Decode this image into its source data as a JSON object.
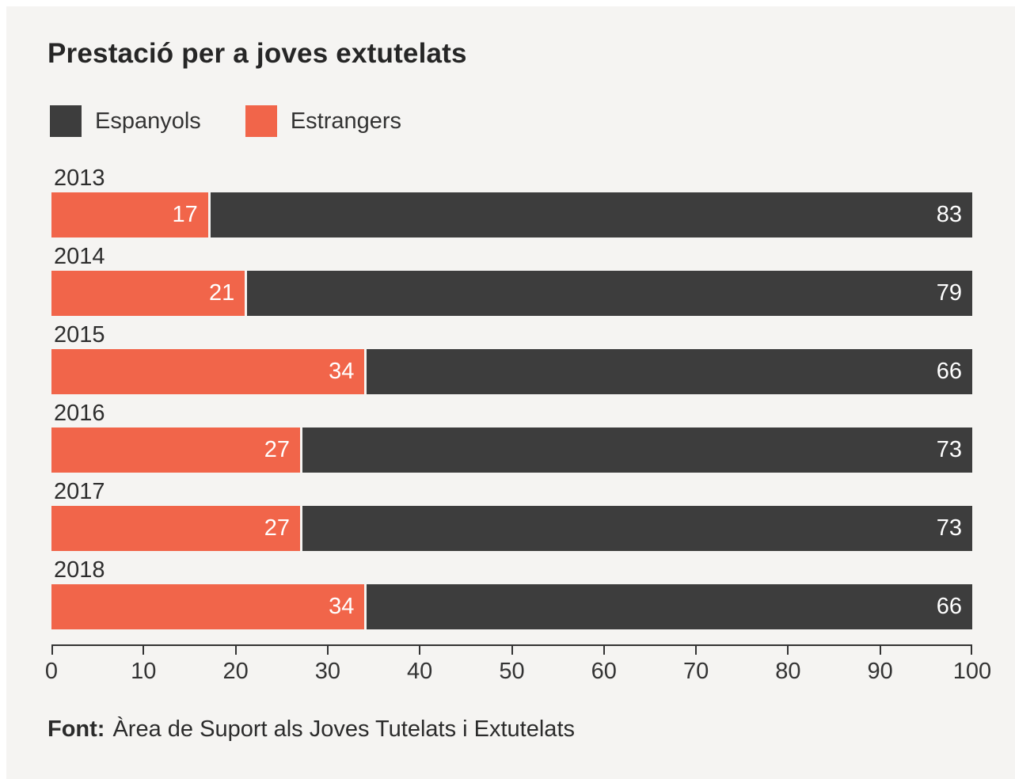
{
  "title": "Prestació per a joves extutelats",
  "colors": {
    "background": "#f5f4f2",
    "espanyols": "#3d3d3d",
    "estrangers": "#f1654a",
    "axis": "#333333",
    "bar_label": "#ffffff"
  },
  "legend": {
    "items": [
      {
        "label": "Espanyols",
        "color": "#3d3d3d"
      },
      {
        "label": "Estrangers",
        "color": "#f1654a"
      }
    ]
  },
  "chart_data": {
    "type": "bar",
    "orientation": "horizontal",
    "stacked": true,
    "unit": "percent",
    "title": "Prestació per a joves extutelats",
    "categories": [
      "2013",
      "2014",
      "2015",
      "2016",
      "2017",
      "2018"
    ],
    "series": [
      {
        "name": "Estrangers",
        "color": "#f1654a",
        "values": [
          17,
          21,
          34,
          27,
          27,
          34
        ]
      },
      {
        "name": "Espanyols",
        "color": "#3d3d3d",
        "values": [
          83,
          79,
          66,
          73,
          73,
          66
        ]
      }
    ],
    "xlim": [
      0,
      100
    ],
    "xticks": [
      0,
      10,
      20,
      30,
      40,
      50,
      60,
      70,
      80,
      90,
      100
    ],
    "legend_position": "top",
    "grid": false
  },
  "source": {
    "prefix": "Font:",
    "text": "Àrea de Suport als Joves Tutelats i Extutelats"
  }
}
